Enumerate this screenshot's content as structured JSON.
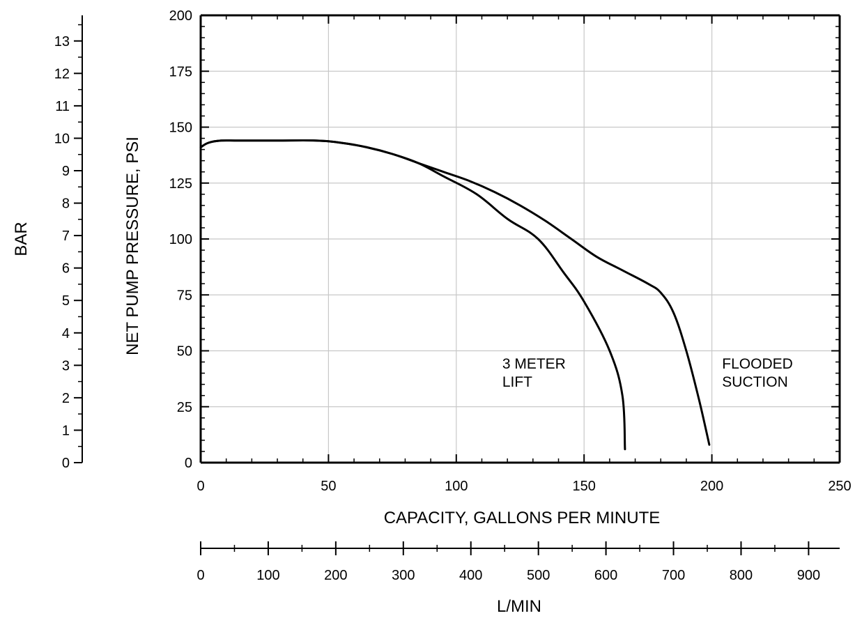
{
  "chart_data": {
    "type": "line",
    "title": "",
    "xlabel": "CAPACITY, GALLONS PER MINUTE",
    "ylabel": "NET PUMP PRESSURE, PSI",
    "secondary_xlabel": "L/MIN",
    "secondary_ylabel": "BAR",
    "xlim": [
      0,
      250
    ],
    "ylim": [
      0,
      200
    ],
    "secondary_xlim": [
      0,
      946
    ],
    "secondary_ylim": [
      0,
      13.79
    ],
    "grid": true,
    "x_ticks": [
      "0",
      "50",
      "100",
      "150",
      "200",
      "250"
    ],
    "y_ticks": [
      "0",
      "25",
      "50",
      "75",
      "100",
      "125",
      "150",
      "175",
      "200"
    ],
    "secondary_x_ticks": [
      "0",
      "100",
      "200",
      "300",
      "400",
      "500",
      "600",
      "700",
      "800",
      "900"
    ],
    "secondary_y_ticks": [
      "0",
      "1",
      "2",
      "3",
      "4",
      "5",
      "6",
      "7",
      "8",
      "9",
      "10",
      "11",
      "12",
      "13"
    ],
    "series": [
      {
        "name": "FLOODED SUCTION",
        "label_lines": [
          "FLOODED",
          "SUCTION"
        ],
        "x": [
          0,
          3,
          8,
          15,
          30,
          45,
          55,
          65,
          75,
          85,
          95,
          105,
          115,
          125,
          135,
          145,
          155,
          165,
          175,
          180,
          185,
          190,
          195,
          199
        ],
        "y": [
          141,
          143,
          144,
          144,
          144,
          144,
          143,
          141,
          138,
          134,
          130,
          126,
          121,
          115,
          108,
          100,
          92,
          86,
          80,
          76,
          67,
          50,
          28,
          8
        ]
      },
      {
        "name": "3 METER LIFT",
        "label_lines": [
          "3 METER",
          "LIFT"
        ],
        "x": [
          0,
          3,
          8,
          15,
          30,
          45,
          55,
          65,
          75,
          85,
          95,
          108,
          120,
          132,
          142,
          150,
          160,
          165,
          166
        ],
        "y": [
          141,
          143,
          144,
          144,
          144,
          144,
          143,
          141,
          138,
          134,
          128,
          120,
          109,
          100,
          85,
          72,
          50,
          30,
          6
        ]
      }
    ],
    "annotations": [
      {
        "lines": [
          "3 METER",
          "LIFT"
        ],
        "x": 118,
        "y": 42
      },
      {
        "lines": [
          "FLOODED",
          "SUCTION"
        ],
        "x": 204,
        "y": 42
      }
    ]
  }
}
